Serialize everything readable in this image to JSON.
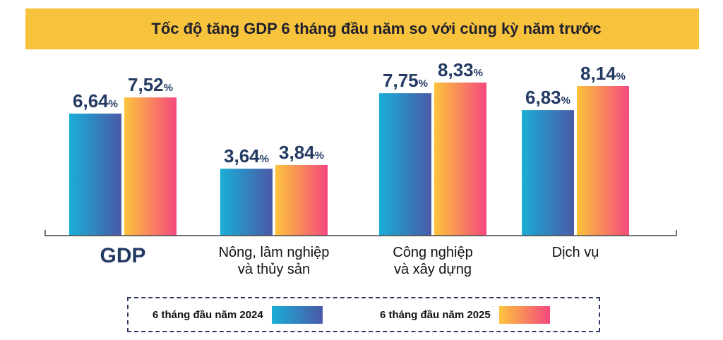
{
  "chart_data": {
    "type": "bar",
    "title": "Tốc độ tăng GDP 6 tháng đầu năm so với cùng kỳ năm trước",
    "categories": [
      "GDP",
      "Nông, lâm nghiệp và thủy sản",
      "Công nghiệp và xây dựng",
      "Dịch vụ"
    ],
    "category_lines": [
      [
        "GDP"
      ],
      [
        "Nông, lâm nghiệp",
        "và thủy sản"
      ],
      [
        "Công nghiệp",
        "và xây dựng"
      ],
      [
        "Dịch vụ"
      ]
    ],
    "value_suffix": "%",
    "series": [
      {
        "name": "6 tháng đầu năm 2024",
        "values": [
          6.64,
          3.64,
          7.75,
          6.83
        ],
        "labels": [
          "6,64",
          "3,64",
          "7,75",
          "6,83"
        ],
        "colors": [
          "#1aaed6",
          "#4a59a7"
        ]
      },
      {
        "name": "6 tháng đầu năm 2025",
        "values": [
          7.52,
          3.84,
          8.33,
          8.14
        ],
        "labels": [
          "7,52",
          "3,84",
          "8,33",
          "8,14"
        ],
        "colors": [
          "#fcc43c",
          "#f5487e"
        ]
      }
    ],
    "ylim": [
      0,
      8.6
    ],
    "grid": false,
    "legend": "bottom"
  },
  "colors": {
    "banner": "#f8c33c",
    "value_label": "#243a63",
    "axis": "#444444"
  }
}
